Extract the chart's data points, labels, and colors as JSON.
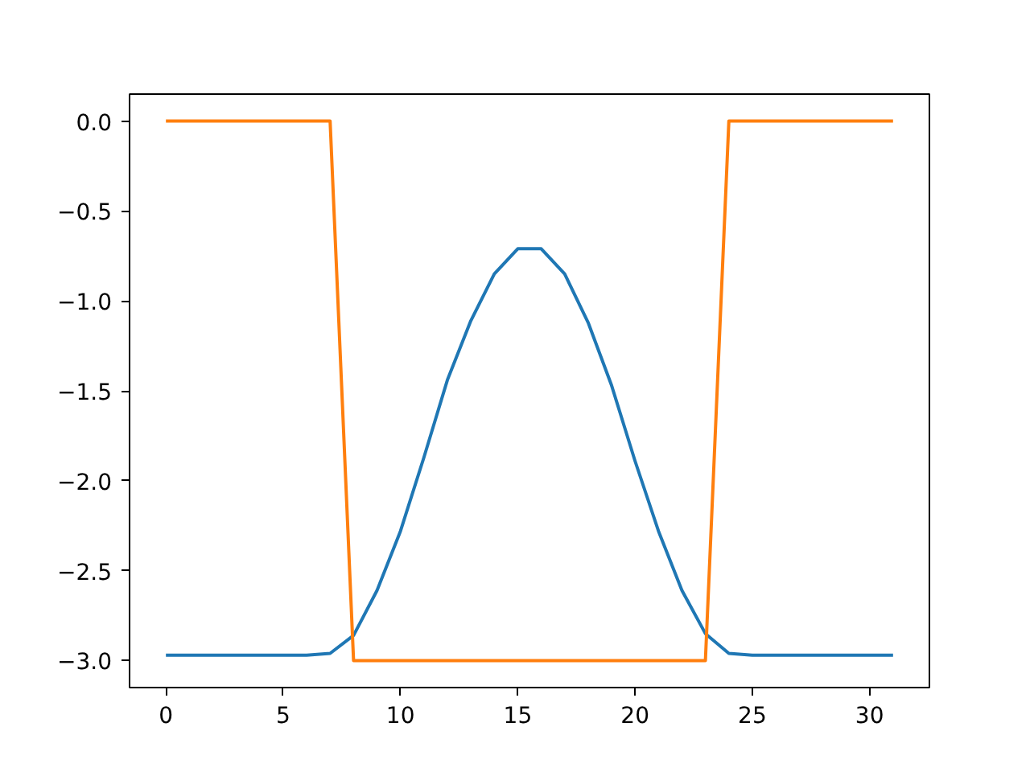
{
  "chart_data": {
    "type": "line",
    "x": [
      0,
      1,
      2,
      3,
      4,
      5,
      6,
      7,
      8,
      9,
      10,
      11,
      12,
      13,
      14,
      15,
      16,
      17,
      18,
      19,
      20,
      21,
      22,
      23,
      24,
      25,
      26,
      27,
      28,
      29,
      30,
      31
    ],
    "series": [
      {
        "color": "#1f77b4",
        "values": [
          -2.97,
          -2.97,
          -2.97,
          -2.97,
          -2.97,
          -2.97,
          -2.97,
          -2.96,
          -2.86,
          -2.61,
          -2.28,
          -1.87,
          -1.44,
          -1.11,
          -0.85,
          -0.71,
          -0.71,
          -0.85,
          -1.12,
          -1.47,
          -1.89,
          -2.28,
          -2.61,
          -2.85,
          -2.96,
          -2.97,
          -2.97,
          -2.97,
          -2.97,
          -2.97,
          -2.97,
          -2.97
        ]
      },
      {
        "color": "#ff7f0e",
        "values": [
          0,
          0,
          0,
          0,
          0,
          0,
          0,
          0,
          -3,
          -3,
          -3,
          -3,
          -3,
          -3,
          -3,
          -3,
          -3,
          -3,
          -3,
          -3,
          -3,
          -3,
          -3,
          -3,
          0,
          0,
          0,
          0,
          0,
          0,
          0,
          0
        ]
      }
    ],
    "xlim": [
      -1.55,
      32.55
    ],
    "ylim": [
      -3.15,
      0.15
    ],
    "xticks": [
      0,
      5,
      10,
      15,
      20,
      25,
      30
    ],
    "yticks": [
      {
        "value": 0.0,
        "label": "0.0"
      },
      {
        "value": -0.5,
        "label": "−0.5"
      },
      {
        "value": -1.0,
        "label": "−1.0"
      },
      {
        "value": -1.5,
        "label": "−1.5"
      },
      {
        "value": -2.0,
        "label": "−2.0"
      },
      {
        "value": -2.5,
        "label": "−2.5"
      },
      {
        "value": -3.0,
        "label": "−3.0"
      }
    ],
    "grid": false,
    "marker": "none",
    "line_style": "solid"
  }
}
